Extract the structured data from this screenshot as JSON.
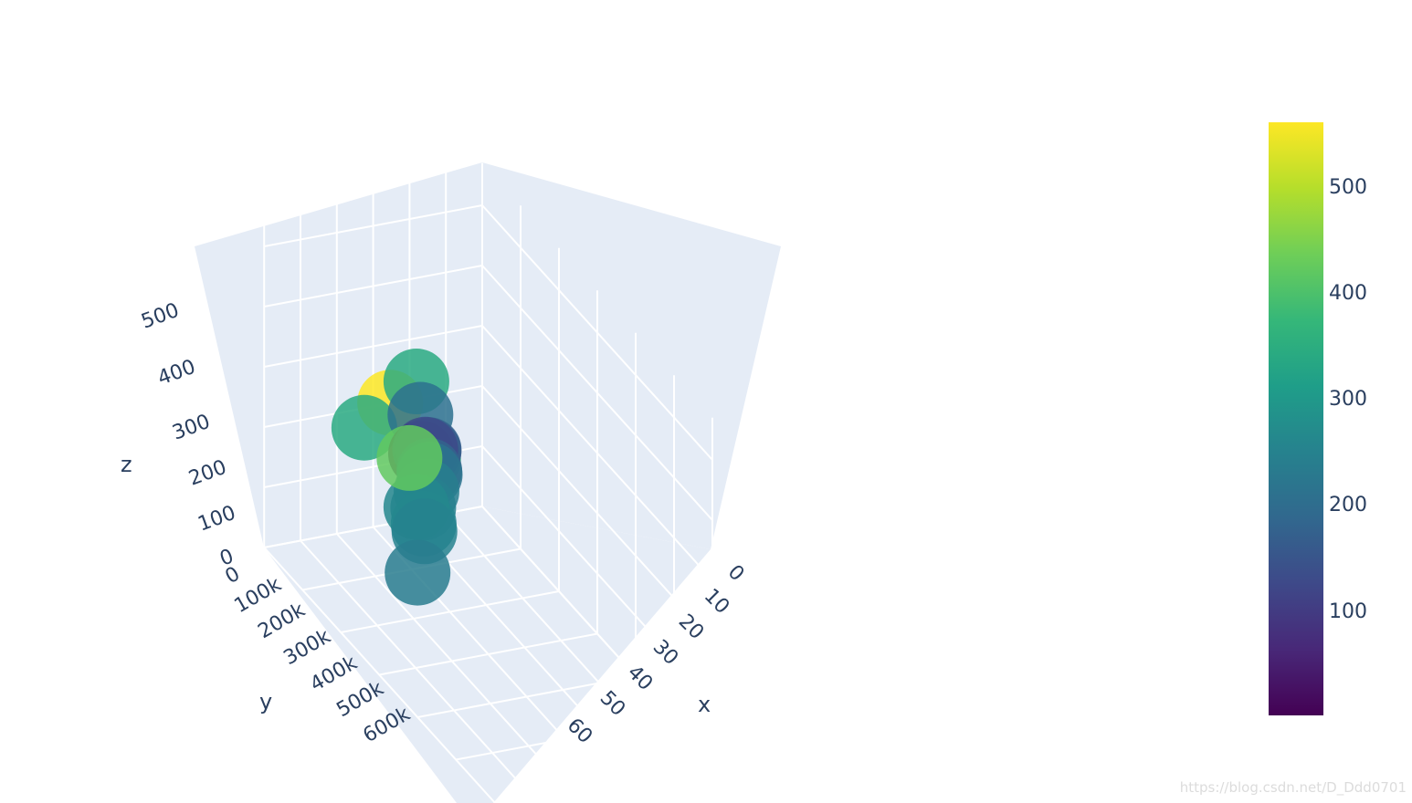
{
  "chart_data": {
    "type": "scatter3d",
    "title": "",
    "axes": {
      "x": {
        "label": "x",
        "ticks": [
          "0",
          "10",
          "20",
          "30",
          "40",
          "50",
          "60"
        ]
      },
      "y": {
        "label": "y",
        "ticks": [
          "0",
          "100k",
          "200k",
          "300k",
          "400k",
          "500k",
          "600k"
        ]
      },
      "z": {
        "label": "z",
        "ticks": [
          "0",
          "100",
          "200",
          "300",
          "400",
          "500"
        ]
      }
    },
    "colorbar": {
      "colorscale": "viridis",
      "range": [
        5,
        555
      ],
      "ticks": [
        "100",
        "200",
        "300",
        "400",
        "500"
      ],
      "tick_values": [
        100,
        200,
        300,
        400,
        500
      ]
    },
    "grid": true,
    "background": "#e5ecf6",
    "points": [
      {
        "x": 40,
        "y": 600000,
        "z": 240,
        "color": 235
      },
      {
        "x": 38,
        "y": 560000,
        "z": 290,
        "color": 250
      },
      {
        "x": 36,
        "y": 580000,
        "z": 400,
        "color": 420
      },
      {
        "x": 34,
        "y": 540000,
        "z": 300,
        "color": 260
      },
      {
        "x": 34,
        "y": 520000,
        "z": 270,
        "color": 255
      },
      {
        "x": 32,
        "y": 500000,
        "z": 280,
        "color": 245
      },
      {
        "x": 30,
        "y": 470000,
        "z": 290,
        "color": 240
      },
      {
        "x": 28,
        "y": 440000,
        "z": 300,
        "color": 215
      },
      {
        "x": 26,
        "y": 420000,
        "z": 290,
        "color": 180
      },
      {
        "x": 24,
        "y": 410000,
        "z": 310,
        "color": 130
      },
      {
        "x": 23,
        "y": 390000,
        "z": 300,
        "color": 175
      },
      {
        "x": 22,
        "y": 380000,
        "z": 290,
        "color": 95
      },
      {
        "x": 21,
        "y": 390000,
        "z": 280,
        "color": 8
      },
      {
        "x": 20,
        "y": 360000,
        "z": 260,
        "color": 360
      },
      {
        "x": 18,
        "y": 360000,
        "z": 320,
        "color": 210
      },
      {
        "x": 16,
        "y": 350000,
        "z": 360,
        "color": 340
      },
      {
        "x": 12,
        "y": 380000,
        "z": 300,
        "color": 555
      },
      {
        "x": 10,
        "y": 430000,
        "z": 250,
        "color": 340
      }
    ]
  },
  "watermark": "https://blog.csdn.net/D_Ddd0701"
}
